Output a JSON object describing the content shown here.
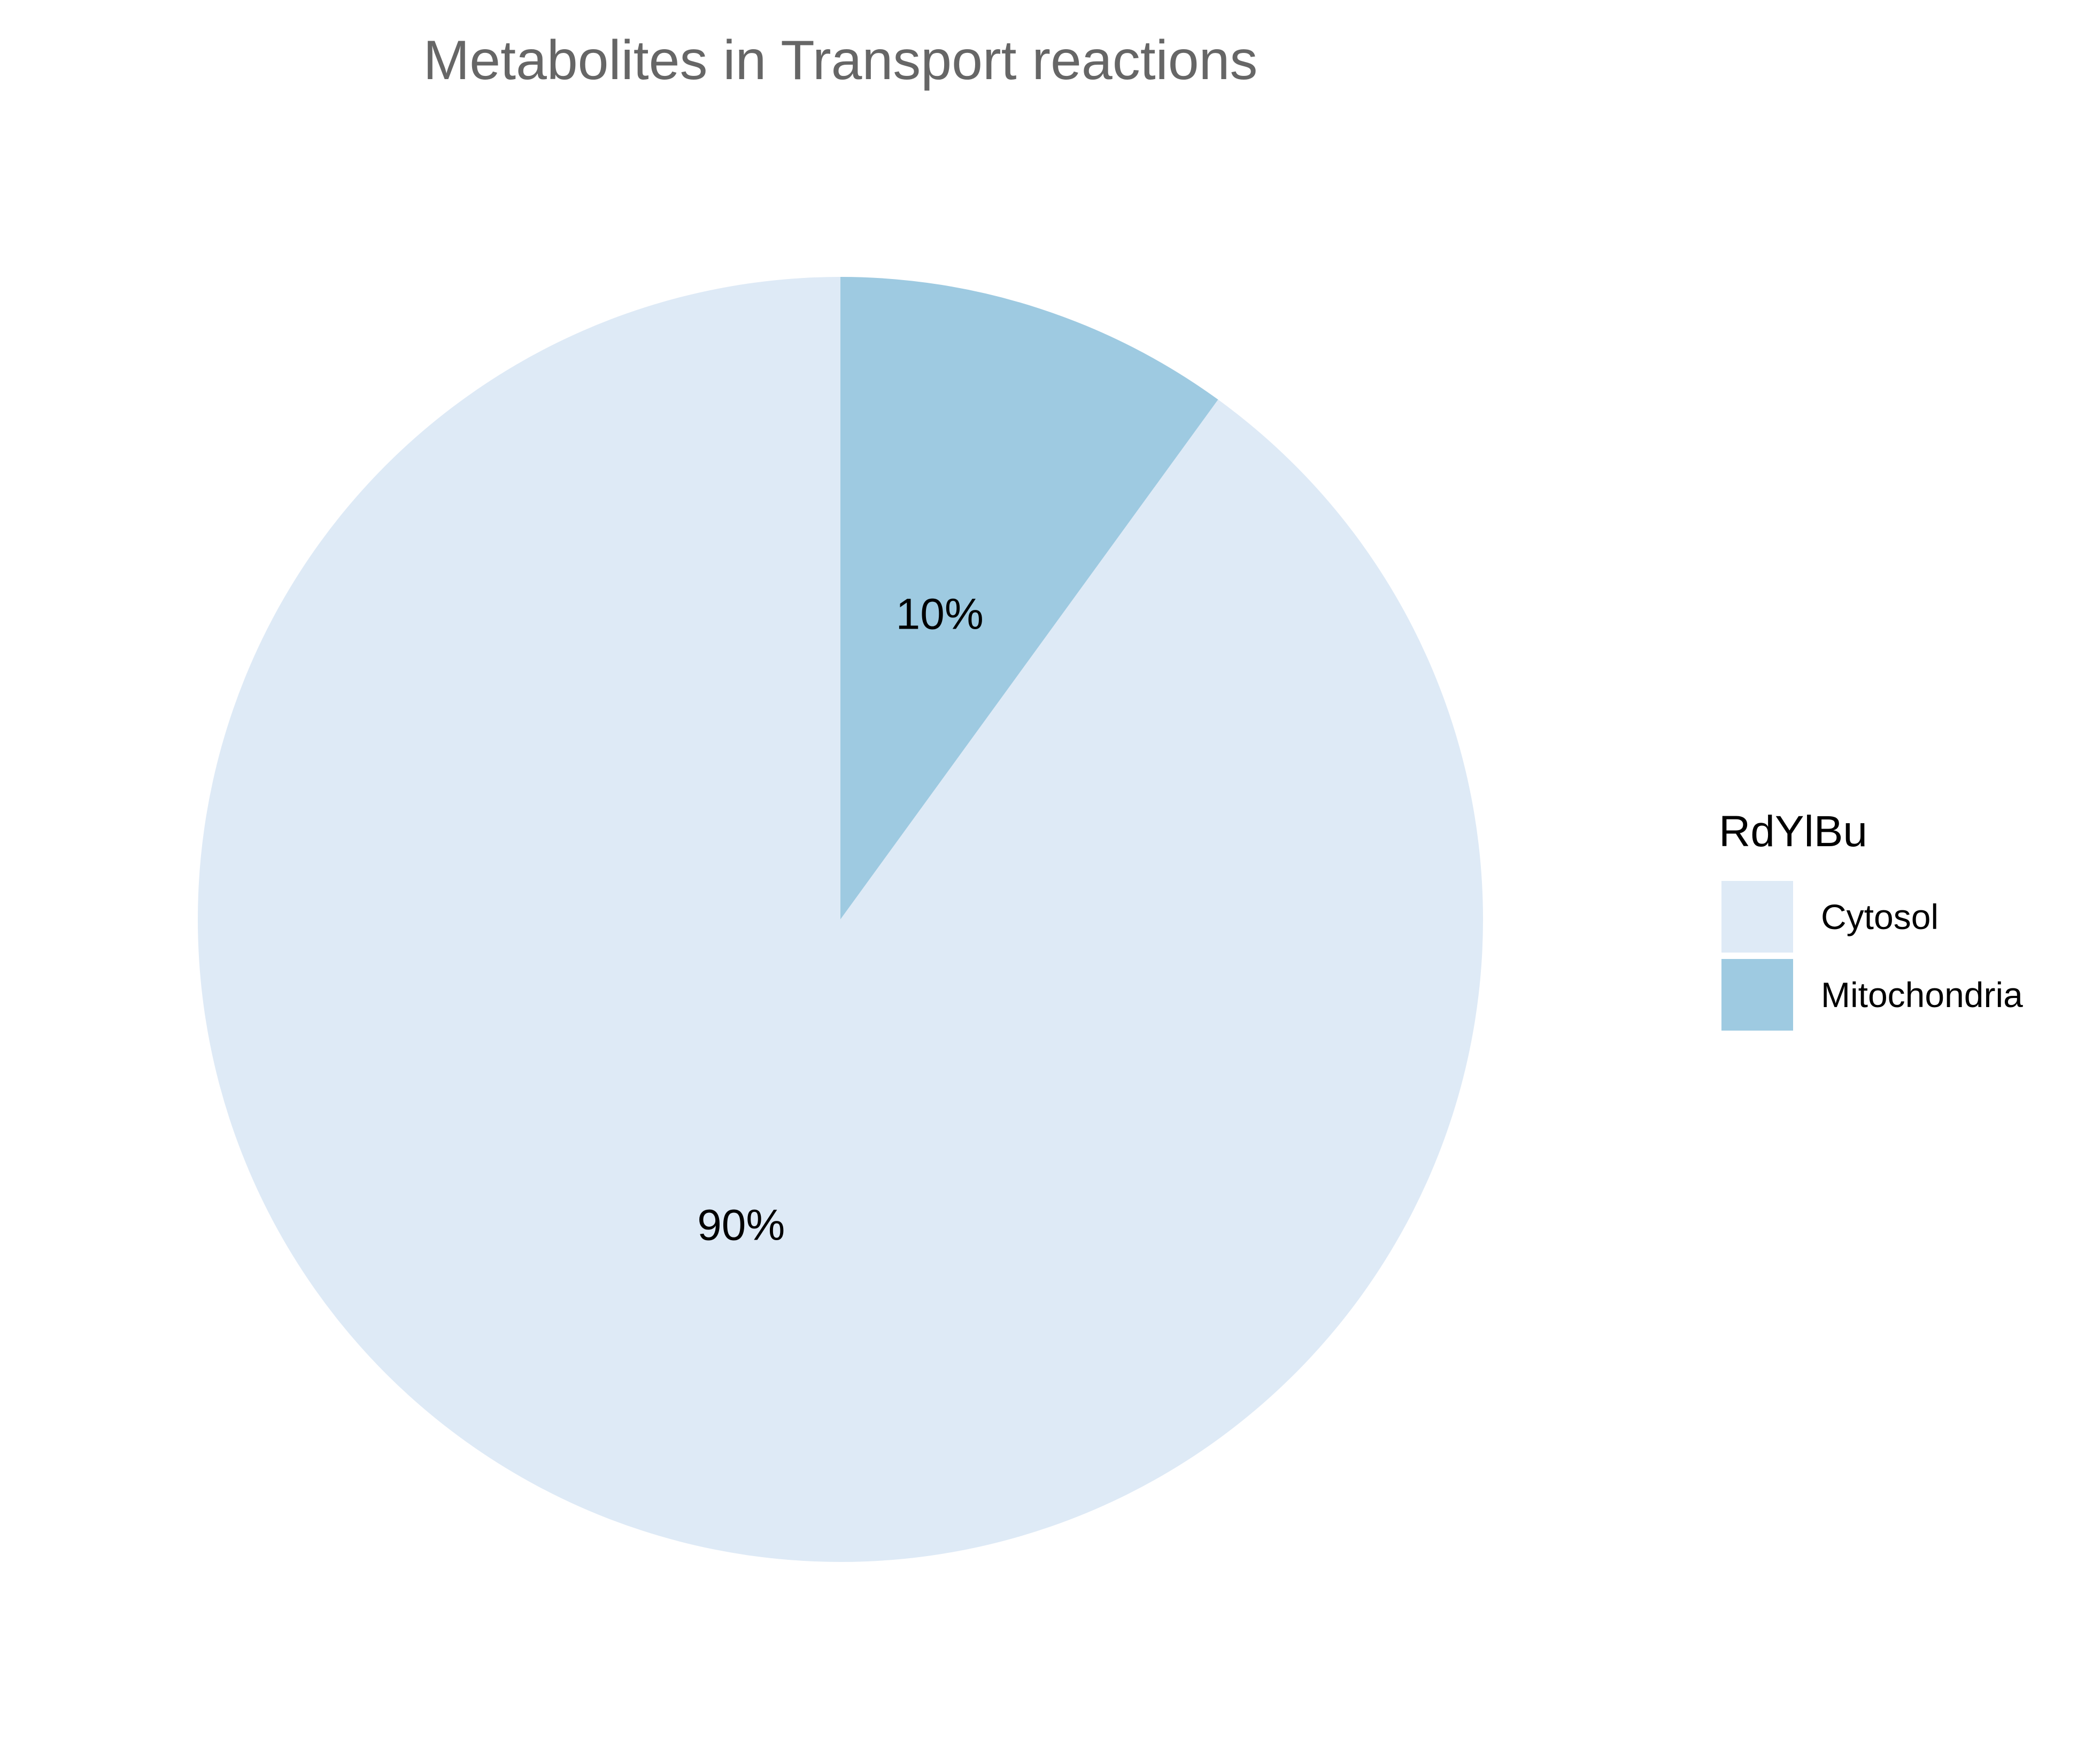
{
  "chart_data": {
    "type": "pie",
    "title": "Metabolites in Transport reactions",
    "start_angle_deg": 0,
    "direction": "clockwise",
    "slices": [
      {
        "name": "Cytosol",
        "value": 90,
        "label": "90%",
        "color": "#deeaf6"
      },
      {
        "name": "Mitochondria",
        "value": 10,
        "label": "10%",
        "color": "#9ecae1"
      }
    ],
    "legend": {
      "title": "RdYlBu",
      "position": "right",
      "entries": [
        {
          "label": "Cytosol",
          "color": "#deeaf6"
        },
        {
          "label": "Mitochondria",
          "color": "#9ecae1"
        }
      ]
    }
  }
}
